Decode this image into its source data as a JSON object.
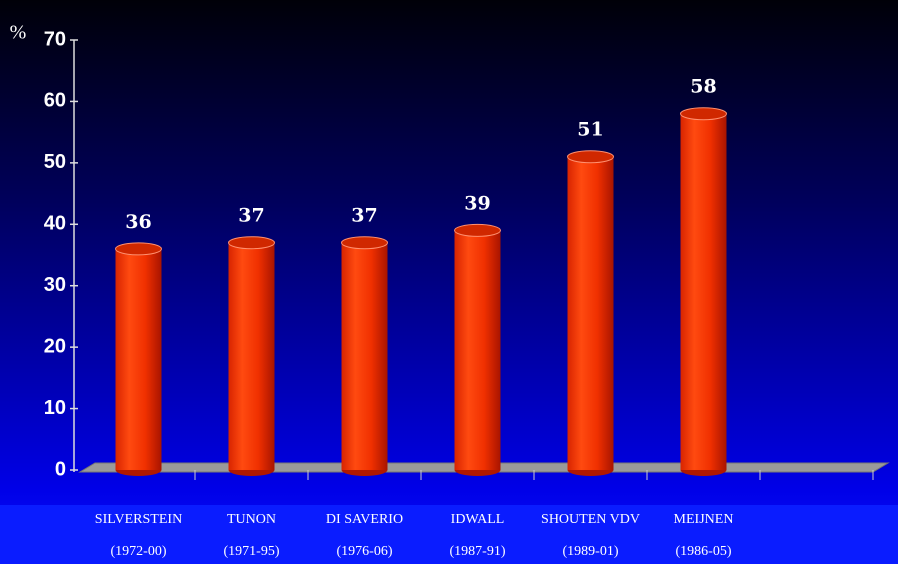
{
  "chart_data": {
    "type": "bar",
    "y_label": "%",
    "categories": [
      "SILVERSTEIN",
      "TUNON",
      "DI SAVERIO",
      "IDWALL",
      "SHOUTEN VDV",
      "MEIJNEN",
      null
    ],
    "category_periods": [
      "(1972-00)",
      "(1971-95)",
      "(1976-06)",
      "(1987-91)",
      "(1989-01)",
      "(1986-05)",
      null
    ],
    "values": [
      36,
      37,
      37,
      39,
      51,
      58,
      null
    ],
    "color": "#ff3300",
    "ylim": [
      0,
      70
    ],
    "yticks": [
      0,
      10,
      20,
      30,
      40,
      50,
      60,
      70
    ]
  }
}
